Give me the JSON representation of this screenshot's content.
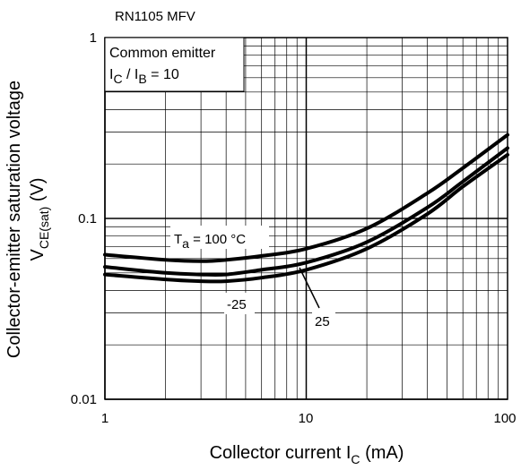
{
  "chart_data": {
    "type": "line",
    "title": "RN1105 MFV",
    "x_scale": "log",
    "y_scale": "log",
    "xlim": [
      1,
      100
    ],
    "ylim": [
      0.01,
      1
    ],
    "x_ticks": [
      "1",
      "10",
      "100"
    ],
    "y_ticks": [
      "0.01",
      "0.1",
      "1"
    ],
    "xlabel": {
      "main": "Collector current  I",
      "sub": "C",
      "unit": "  (mA)"
    },
    "ylabel": {
      "line1": "Collector-emitter saturation voltage",
      "main": "V",
      "sub": "CE(sat)",
      "unit": "   (V)"
    },
    "legend": {
      "line1": "Common emitter",
      "line2_a": "I",
      "line2_a_sub": "C",
      "line2_mid": " / I",
      "line2_b_sub": "B",
      "line2_end": " = 10"
    },
    "grid": true,
    "series": [
      {
        "name": "Ta = 100 °C",
        "x": [
          1,
          2,
          3,
          4,
          6,
          10,
          20,
          40,
          60,
          100
        ],
        "y": [
          0.063,
          0.059,
          0.058,
          0.059,
          0.062,
          0.068,
          0.088,
          0.138,
          0.19,
          0.29
        ]
      },
      {
        "name": "25",
        "x": [
          1,
          2,
          3,
          4,
          6,
          10,
          20,
          40,
          60,
          100
        ],
        "y": [
          0.054,
          0.05,
          0.049,
          0.049,
          0.052,
          0.057,
          0.074,
          0.115,
          0.16,
          0.245
        ]
      },
      {
        "name": "-25",
        "x": [
          1,
          2,
          3,
          4,
          6,
          10,
          20,
          40,
          60,
          100
        ],
        "y": [
          0.049,
          0.046,
          0.045,
          0.045,
          0.047,
          0.052,
          0.068,
          0.106,
          0.15,
          0.225
        ]
      }
    ],
    "annotations": {
      "ta_prefix": "T",
      "ta_sub": "a",
      "ta_value": " = 100 °C",
      "label_m25": "-25",
      "label_25": "25"
    }
  }
}
